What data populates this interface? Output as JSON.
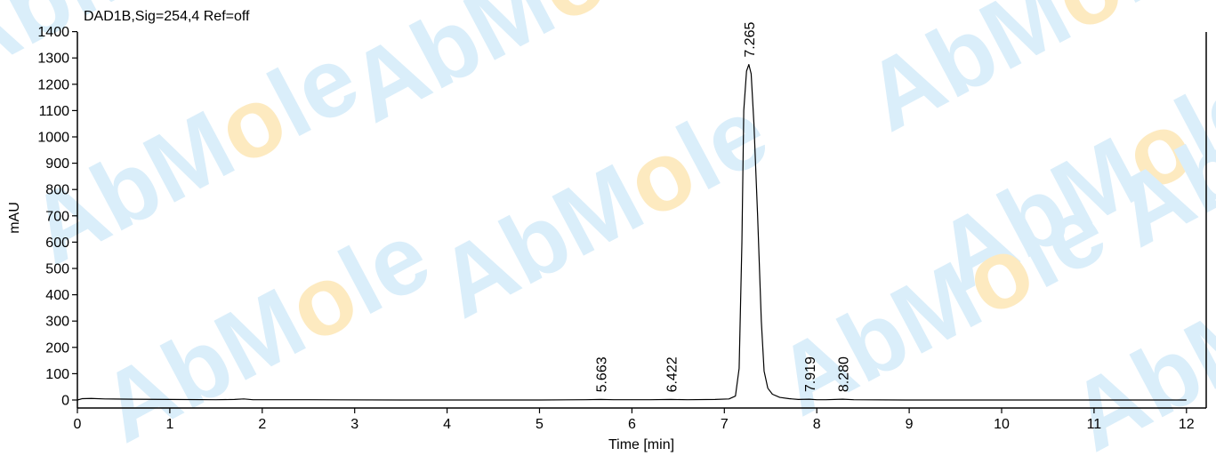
{
  "chart_data": {
    "type": "line",
    "title": "DAD1B,Sig=254,4  Ref=off",
    "xlabel": "Time [min]",
    "ylabel": "mAU",
    "xlim": [
      0,
      12.2
    ],
    "ylim": [
      -30,
      1400
    ],
    "x_ticks": [
      0,
      1,
      2,
      3,
      4,
      5,
      6,
      7,
      8,
      9,
      10,
      11,
      12
    ],
    "y_ticks": [
      0,
      100,
      200,
      300,
      400,
      500,
      600,
      700,
      800,
      900,
      1000,
      1100,
      1200,
      1300,
      1400
    ],
    "grid": false,
    "series": [
      {
        "x": [
          0,
          0.05,
          0.15,
          0.3,
          0.6,
          1.0,
          1.5,
          1.7,
          1.8,
          1.9,
          2.5,
          3.5,
          4.5,
          5.0,
          5.5,
          5.663,
          5.8,
          6.2,
          6.422,
          6.6,
          6.9,
          7.05,
          7.12,
          7.16,
          7.19,
          7.21,
          7.24,
          7.265,
          7.29,
          7.32,
          7.36,
          7.4,
          7.43,
          7.47,
          7.52,
          7.6,
          7.7,
          7.8,
          7.919,
          8.0,
          8.1,
          8.28,
          8.4,
          9.0,
          10.0,
          11.0,
          12.0
        ],
        "y": [
          0,
          5,
          6,
          4,
          3,
          2,
          1,
          2,
          4,
          1,
          1,
          0,
          0,
          0,
          1,
          2,
          1,
          1,
          2,
          1,
          2,
          4,
          15,
          120,
          600,
          1100,
          1250,
          1275,
          1240,
          1050,
          700,
          300,
          110,
          45,
          22,
          10,
          5,
          2,
          3,
          1,
          1,
          3,
          1,
          0,
          0,
          0,
          0
        ]
      }
    ],
    "peaks": [
      {
        "rt": 5.663,
        "label": "5.663",
        "apex": 2
      },
      {
        "rt": 6.422,
        "label": "6.422",
        "apex": 2
      },
      {
        "rt": 7.265,
        "label": "7.265",
        "apex": 1275
      },
      {
        "rt": 7.919,
        "label": "7.919",
        "apex": 3
      },
      {
        "rt": 8.28,
        "label": "8.280",
        "apex": 3
      }
    ],
    "colors": {
      "line": "#000000",
      "axis": "#000000"
    }
  },
  "watermark": {
    "text_parts": [
      "AbM",
      "o",
      "le"
    ],
    "colors": {
      "main": "#daeefa",
      "ring": "#fdeac0"
    }
  }
}
